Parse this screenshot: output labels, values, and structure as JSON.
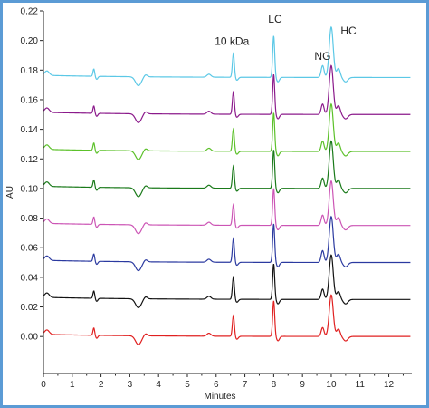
{
  "chart_data": {
    "type": "line",
    "xlabel": "Minutes",
    "ylabel": "AU",
    "xlim": [
      0,
      12.8
    ],
    "ylim": [
      -0.025,
      0.22
    ],
    "x_ticks": [
      0,
      1,
      2,
      3,
      4,
      5,
      6,
      7,
      8,
      9,
      10,
      11,
      12
    ],
    "y_ticks": [
      0.0,
      0.02,
      0.04,
      0.06,
      0.08,
      0.1,
      0.12,
      0.14,
      0.16,
      0.18,
      0.2,
      0.22
    ],
    "y_tick_labels": [
      "0.00",
      "0.02",
      "0.04",
      "0.06",
      "0.08",
      "0.10",
      "0.12",
      "0.14",
      "0.16",
      "0.18",
      "0.20",
      "0.22"
    ],
    "grid": false,
    "legend": "none",
    "annotations": [
      {
        "text": "10 kDa",
        "x": 6.55,
        "y": 0.197
      },
      {
        "text": "LC",
        "x": 8.05,
        "y": 0.212
      },
      {
        "text": "NG",
        "x": 9.7,
        "y": 0.187
      },
      {
        "text": "HC",
        "x": 10.6,
        "y": 0.204
      }
    ],
    "series": [
      {
        "baseline": 0.175,
        "color": "#5bc8e6",
        "peaks": {
          "p10": 0.016,
          "lc": 0.028,
          "ng": 0.008,
          "hc": 0.034
        }
      },
      {
        "baseline": 0.15,
        "color": "#8b1a8b",
        "peaks": {
          "p10": 0.015,
          "lc": 0.027,
          "ng": 0.007,
          "hc": 0.033
        }
      },
      {
        "baseline": 0.125,
        "color": "#5cc12a",
        "peaks": {
          "p10": 0.015,
          "lc": 0.026,
          "ng": 0.007,
          "hc": 0.032
        }
      },
      {
        "baseline": 0.1,
        "color": "#1a7a1a",
        "peaks": {
          "p10": 0.015,
          "lc": 0.026,
          "ng": 0.007,
          "hc": 0.032
        }
      },
      {
        "baseline": 0.075,
        "color": "#cc55b5",
        "peaks": {
          "p10": 0.014,
          "lc": 0.025,
          "ng": 0.007,
          "hc": 0.03
        }
      },
      {
        "baseline": 0.05,
        "color": "#2b3aa0",
        "peaks": {
          "p10": 0.016,
          "lc": 0.026,
          "ng": 0.008,
          "hc": 0.031
        }
      },
      {
        "baseline": 0.025,
        "color": "#111111",
        "peaks": {
          "p10": 0.015,
          "lc": 0.024,
          "ng": 0.007,
          "hc": 0.03
        }
      },
      {
        "baseline": 0.0,
        "color": "#e02020",
        "peaks": {
          "p10": 0.014,
          "lc": 0.024,
          "ng": 0.006,
          "hc": 0.028
        }
      }
    ]
  }
}
